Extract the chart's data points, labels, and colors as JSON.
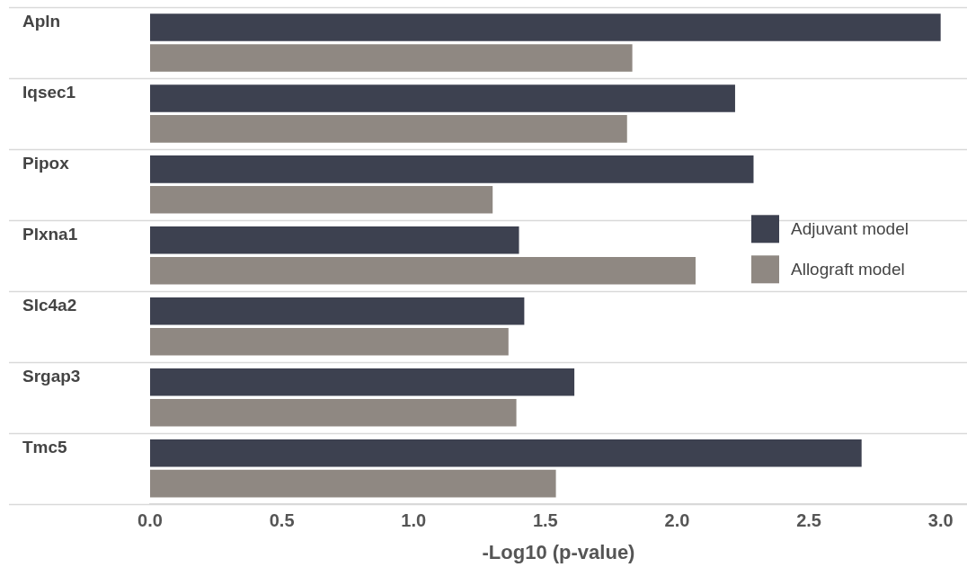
{
  "chart_data": {
    "type": "bar",
    "orientation": "horizontal",
    "xlabel": "-Log10 (p-value)",
    "categories": [
      "Apln",
      "Iqsec1",
      "Pipox",
      "Plxna1",
      "Slc4a2",
      "Srgap3",
      "Tmc5"
    ],
    "series": [
      {
        "name": "Adjuvant model",
        "color": "#3d4150",
        "values": [
          3.0,
          2.22,
          2.29,
          1.4,
          1.42,
          1.61,
          2.7
        ]
      },
      {
        "name": "Allograft model",
        "color": "#8f8882",
        "values": [
          1.83,
          1.81,
          1.3,
          2.07,
          1.36,
          1.39,
          1.54
        ]
      }
    ],
    "xlim": [
      0,
      3.1
    ],
    "xticks": [
      {
        "value": 0,
        "label": "0.0"
      },
      {
        "value": 0.5,
        "label": "0.5"
      },
      {
        "value": 1,
        "label": "1.0"
      },
      {
        "value": 1.5,
        "label": "1.5"
      },
      {
        "value": 2,
        "label": "2.0"
      },
      {
        "value": 2.5,
        "label": "2.5"
      },
      {
        "value": 3,
        "label": "3.0"
      }
    ],
    "grid": "y",
    "legend": "right"
  }
}
